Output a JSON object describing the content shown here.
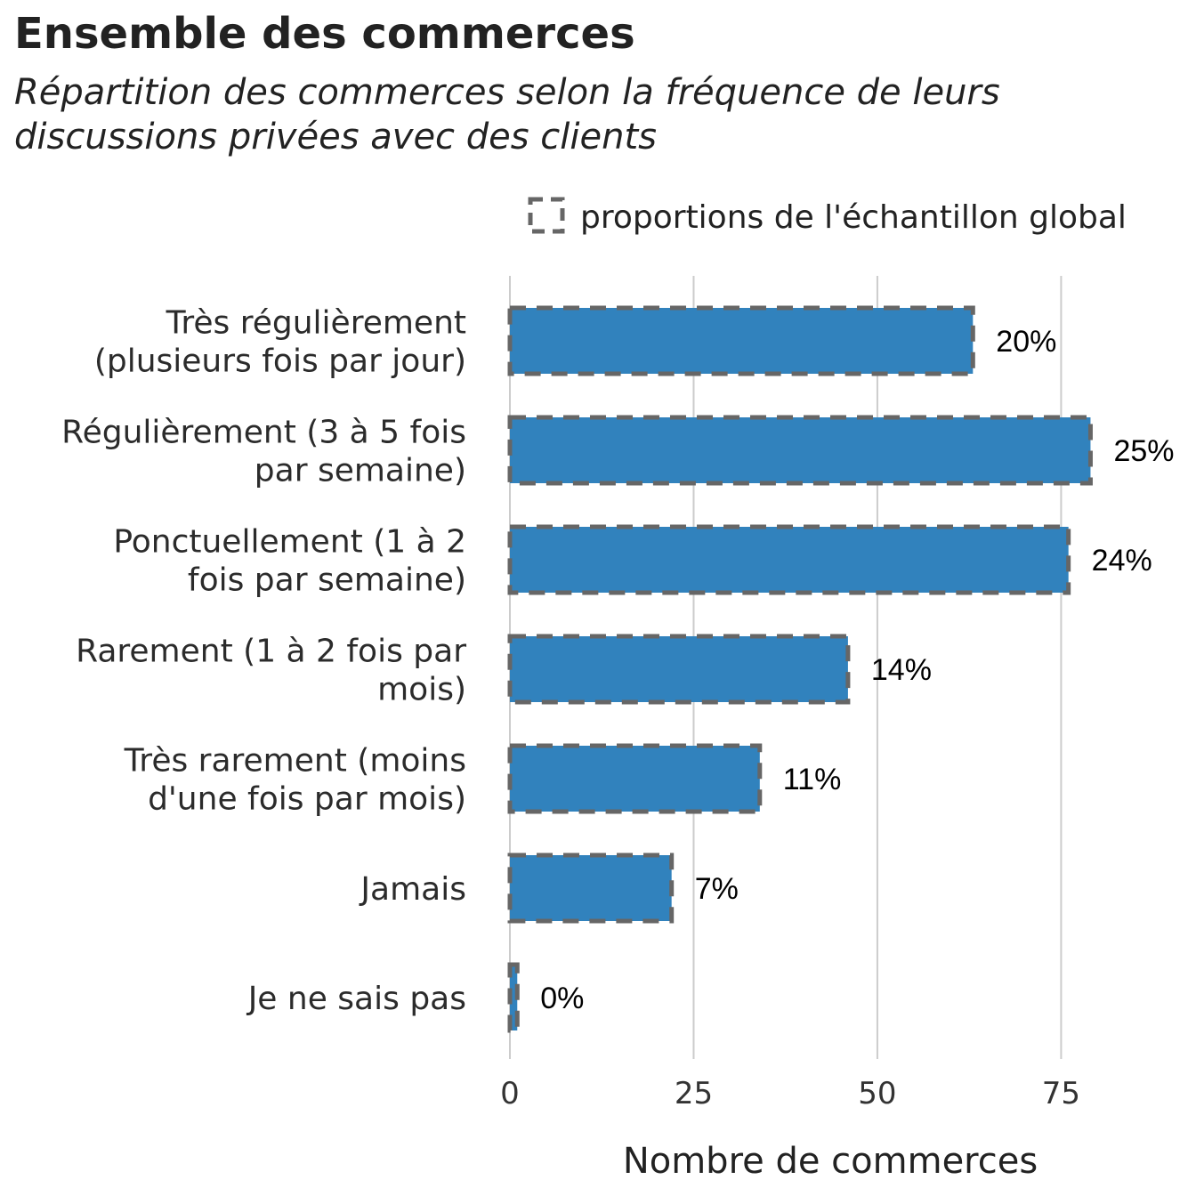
{
  "chart_data": {
    "type": "bar",
    "orientation": "horizontal",
    "title": "Ensemble des commerces",
    "subtitle_lines": [
      "Répartition des commerces selon la fréquence de leurs",
      "discussions privées avec des clients"
    ],
    "legend": {
      "label": "proportions de l'échantillon global",
      "placement": "top-right"
    },
    "xlabel": "Nombre de commerces",
    "ylabel": "",
    "xlim": [
      0,
      85
    ],
    "xticks": [
      0,
      25,
      50,
      75
    ],
    "grid": true,
    "colors": {
      "bar": "#3182bd",
      "dashed_outline": "#666666",
      "grid": "#cccccc"
    },
    "categories": [
      [
        "Très régulièrement",
        "(plusieurs fois par jour)"
      ],
      [
        "Régulièrement (3 à 5 fois",
        "par semaine)"
      ],
      [
        "Ponctuellement (1 à 2",
        "fois par semaine)"
      ],
      [
        "Rarement (1 à 2 fois par",
        "mois)"
      ],
      [
        "Très rarement (moins",
        "d'une fois par mois)"
      ],
      [
        "Jamais"
      ],
      [
        "Je ne sais pas"
      ]
    ],
    "values": [
      63,
      79,
      76,
      46,
      34,
      22,
      1
    ],
    "global_proportion_values": [
      63,
      79,
      76,
      46,
      34,
      22,
      1
    ],
    "value_labels": [
      "20%",
      "25%",
      "24%",
      "14%",
      "11%",
      "7%",
      "0%"
    ]
  }
}
